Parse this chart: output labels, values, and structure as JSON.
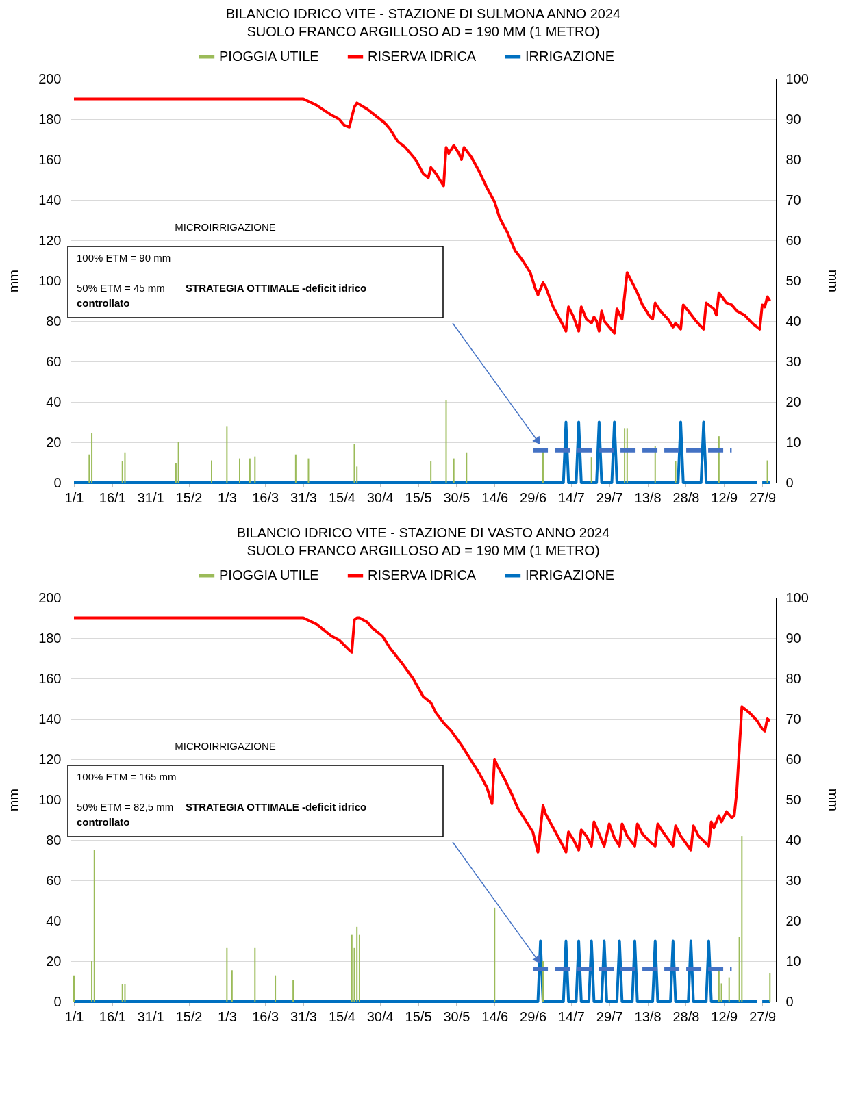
{
  "chart_data": [
    {
      "type": "line",
      "title": "BILANCIO IDRICO VITE - STAZIONE DI SULMONA          ANNO 2024",
      "subtitle": "SUOLO FRANCO ARGILLOSO     AD =  190 MM (1 METRO)",
      "ylabel": "mm",
      "y2label": "mm",
      "annotations": [
        "MICROIRRIGAZIONE",
        "100% ETM = 90 mm",
        "50% ETM = 45 mm",
        "STRATEGIA OTTIMALE  -deficit idrico",
        "controllato"
      ],
      "xlim": [
        "2024-01-01",
        "2024-10-01"
      ],
      "xticks": [
        {
          "value": "2024-01-01",
          "label": "1/1"
        },
        {
          "value": "2024-01-16",
          "label": "16/1"
        },
        {
          "value": "2024-01-31",
          "label": "31/1"
        },
        {
          "value": "2024-02-15",
          "label": "15/2"
        },
        {
          "value": "2024-03-01",
          "label": "1/3"
        },
        {
          "value": "2024-03-16",
          "label": "16/3"
        },
        {
          "value": "2024-03-31",
          "label": "31/3"
        },
        {
          "value": "2024-04-15",
          "label": "15/4"
        },
        {
          "value": "2024-04-30",
          "label": "30/4"
        },
        {
          "value": "2024-05-15",
          "label": "15/5"
        },
        {
          "value": "2024-05-30",
          "label": "30/5"
        },
        {
          "value": "2024-06-14",
          "label": "14/6"
        },
        {
          "value": "2024-06-29",
          "label": "29/6"
        },
        {
          "value": "2024-07-14",
          "label": "14/7"
        },
        {
          "value": "2024-07-29",
          "label": "29/7"
        },
        {
          "value": "2024-08-13",
          "label": "13/8"
        },
        {
          "value": "2024-08-28",
          "label": "28/8"
        },
        {
          "value": "2024-09-12",
          "label": "12/9"
        },
        {
          "value": "2024-09-27",
          "label": "27/9"
        }
      ],
      "ylim": [
        0,
        200
      ],
      "yticks": [
        0,
        20,
        40,
        60,
        80,
        100,
        120,
        140,
        160,
        180,
        200
      ],
      "y2lim": [
        0,
        100
      ],
      "y2ticks": [
        0,
        10,
        20,
        30,
        40,
        50,
        60,
        70,
        80,
        90,
        100
      ],
      "grid": "y",
      "legend": "top",
      "marker": "none",
      "series": [
        {
          "name": "PIOGGIA UTILE",
          "type": "bar",
          "color": "#9bbb59",
          "x": [
            "2024-01-07",
            "2024-01-08",
            "2024-01-20",
            "2024-01-21",
            "2024-02-10",
            "2024-02-11",
            "2024-02-24",
            "2024-03-01",
            "2024-03-06",
            "2024-03-10",
            "2024-03-12",
            "2024-03-28",
            "2024-04-02",
            "2024-04-20",
            "2024-04-21",
            "2024-05-20",
            "2024-05-26",
            "2024-05-29",
            "2024-06-03",
            "2024-07-03",
            "2024-07-22",
            "2024-08-04",
            "2024-08-05",
            "2024-08-16",
            "2024-08-24",
            "2024-09-10",
            "2024-09-29"
          ],
          "values": [
            14,
            24.5,
            10.5,
            15,
            9.5,
            20,
            11,
            28,
            12,
            12,
            13,
            14,
            12,
            19,
            8,
            10.5,
            41,
            12,
            15,
            15.5,
            12.5,
            27,
            27,
            18,
            10.5,
            23,
            11
          ]
        },
        {
          "name": "RISERVA IDRICA",
          "color": "#ff0000",
          "x": [
            "2024-01-01",
            "2024-03-31",
            "2024-04-05",
            "2024-04-11",
            "2024-04-14",
            "2024-04-16",
            "2024-04-18",
            "2024-04-20",
            "2024-04-21",
            "2024-04-25",
            "2024-04-27",
            "2024-05-02",
            "2024-05-04",
            "2024-05-07",
            "2024-05-10",
            "2024-05-14",
            "2024-05-17",
            "2024-05-19",
            "2024-05-20",
            "2024-05-22",
            "2024-05-25",
            "2024-05-26",
            "2024-05-27",
            "2024-05-29",
            "2024-05-31",
            "2024-06-01",
            "2024-06-02",
            "2024-06-05",
            "2024-06-08",
            "2024-06-11",
            "2024-06-14",
            "2024-06-16",
            "2024-06-19",
            "2024-06-22",
            "2024-06-25",
            "2024-06-28",
            "2024-06-30",
            "2024-07-01",
            "2024-07-03",
            "2024-07-04",
            "2024-07-07",
            "2024-07-10",
            "2024-07-12",
            "2024-07-13",
            "2024-07-15",
            "2024-07-17",
            "2024-07-18",
            "2024-07-20",
            "2024-07-22",
            "2024-07-23",
            "2024-07-24",
            "2024-07-25",
            "2024-07-26",
            "2024-07-27",
            "2024-07-29",
            "2024-07-31",
            "2024-08-01",
            "2024-08-03",
            "2024-08-05",
            "2024-08-07",
            "2024-08-09",
            "2024-08-11",
            "2024-08-14",
            "2024-08-15",
            "2024-08-16",
            "2024-08-18",
            "2024-08-21",
            "2024-08-23",
            "2024-08-24",
            "2024-08-26",
            "2024-08-27",
            "2024-08-29",
            "2024-09-01",
            "2024-09-04",
            "2024-09-05",
            "2024-09-08",
            "2024-09-09",
            "2024-09-10",
            "2024-09-13",
            "2024-09-15",
            "2024-09-17",
            "2024-09-20",
            "2024-09-23",
            "2024-09-26",
            "2024-09-27",
            "2024-09-28",
            "2024-09-29",
            "2024-09-30"
          ],
          "values": [
            190,
            190,
            187,
            182,
            180,
            177,
            176,
            186,
            188,
            185,
            183,
            178,
            175,
            169,
            166,
            160,
            153,
            151,
            156,
            153,
            147,
            166,
            163,
            167,
            163,
            160,
            166,
            161,
            154,
            146,
            139,
            131,
            124,
            115,
            110,
            104,
            96,
            93,
            99,
            97,
            87,
            80,
            75,
            87,
            82,
            75,
            87,
            81,
            79,
            82,
            80,
            75,
            85,
            80,
            77,
            74,
            86,
            81,
            104,
            99,
            94,
            88,
            82,
            81,
            89,
            85,
            81,
            77,
            79,
            76,
            88,
            85,
            80,
            76,
            89,
            86,
            83,
            94,
            89,
            88,
            85,
            83,
            79,
            76,
            88,
            87,
            92,
            90
          ]
        },
        {
          "name": "IRRIGAZIONE",
          "color": "#0070c0",
          "axis": "y2",
          "x": [
            "2024-01-01",
            "2024-07-11",
            "2024-07-12",
            "2024-07-13",
            "2024-07-16",
            "2024-07-17",
            "2024-07-18",
            "2024-07-24",
            "2024-07-25",
            "2024-07-26",
            "2024-07-30",
            "2024-07-31",
            "2024-08-01",
            "2024-08-25",
            "2024-08-26",
            "2024-08-27",
            "2024-09-03",
            "2024-09-04",
            "2024-09-05",
            "2024-09-25",
            "2024-09-26",
            "2024-09-27",
            "2024-09-30"
          ],
          "values": [
            0,
            0,
            15,
            0,
            0,
            15,
            0,
            0,
            15,
            0,
            0,
            15,
            0,
            0,
            15,
            0,
            0,
            15,
            0,
            0,
            null,
            0,
            0
          ]
        },
        {
          "color": "#4472c4",
          "line_style": "dashed",
          "x": [
            "2024-06-29",
            "2024-09-15"
          ],
          "values": [
            16,
            16
          ]
        }
      ]
    },
    {
      "type": "line",
      "title": "BILANCIO IDRICO VITE - STAZIONE DI VASTO          ANNO 2024",
      "subtitle": "SUOLO FRANCO ARGILLOSO     AD =  190 MM (1 METRO)",
      "ylabel": "mm",
      "y2label": "mm",
      "annotations": [
        "MICROIRRIGAZIONE",
        "100% ETM = 165 mm",
        "50% ETM = 82,5 mm",
        "STRATEGIA OTTIMALE  -deficit idrico",
        "controllato"
      ],
      "xlim": [
        "2024-01-01",
        "2024-10-01"
      ],
      "xticks": [
        {
          "value": "2024-01-01",
          "label": "1/1"
        },
        {
          "value": "2024-01-16",
          "label": "16/1"
        },
        {
          "value": "2024-01-31",
          "label": "31/1"
        },
        {
          "value": "2024-02-15",
          "label": "15/2"
        },
        {
          "value": "2024-03-01",
          "label": "1/3"
        },
        {
          "value": "2024-03-16",
          "label": "16/3"
        },
        {
          "value": "2024-03-31",
          "label": "31/3"
        },
        {
          "value": "2024-04-15",
          "label": "15/4"
        },
        {
          "value": "2024-04-30",
          "label": "30/4"
        },
        {
          "value": "2024-05-15",
          "label": "15/5"
        },
        {
          "value": "2024-05-30",
          "label": "30/5"
        },
        {
          "value": "2024-06-14",
          "label": "14/6"
        },
        {
          "value": "2024-06-29",
          "label": "29/6"
        },
        {
          "value": "2024-07-14",
          "label": "14/7"
        },
        {
          "value": "2024-07-29",
          "label": "29/7"
        },
        {
          "value": "2024-08-13",
          "label": "13/8"
        },
        {
          "value": "2024-08-28",
          "label": "28/8"
        },
        {
          "value": "2024-09-12",
          "label": "12/9"
        },
        {
          "value": "2024-09-27",
          "label": "27/9"
        }
      ],
      "ylim": [
        0,
        200
      ],
      "yticks": [
        0,
        20,
        40,
        60,
        80,
        100,
        120,
        140,
        160,
        180,
        200
      ],
      "y2lim": [
        0,
        100
      ],
      "y2ticks": [
        0,
        10,
        20,
        30,
        40,
        50,
        60,
        70,
        80,
        90,
        100
      ],
      "grid": "y",
      "legend": "top",
      "marker": "none",
      "series": [
        {
          "name": "PIOGGIA UTILE",
          "type": "bar",
          "color": "#9bbb59",
          "x": [
            "2024-01-01",
            "2024-01-08",
            "2024-01-09",
            "2024-01-20",
            "2024-01-21",
            "2024-03-01",
            "2024-03-03",
            "2024-03-12",
            "2024-03-20",
            "2024-03-27",
            "2024-04-19",
            "2024-04-20",
            "2024-04-21",
            "2024-04-22",
            "2024-06-14",
            "2024-07-03",
            "2024-09-10",
            "2024-09-11",
            "2024-09-14",
            "2024-09-18",
            "2024-09-19",
            "2024-09-30"
          ],
          "values": [
            13,
            20,
            75,
            8.5,
            8.5,
            26.5,
            15.5,
            26.5,
            13,
            10.5,
            33,
            26.5,
            37,
            33,
            46.5,
            20,
            15,
            9,
            12,
            32,
            82,
            14
          ]
        },
        {
          "name": "RISERVA IDRICA",
          "color": "#ff0000",
          "x": [
            "2024-01-01",
            "2024-03-31",
            "2024-04-05",
            "2024-04-11",
            "2024-04-14",
            "2024-04-18",
            "2024-04-19",
            "2024-04-20",
            "2024-04-21",
            "2024-04-22",
            "2024-04-25",
            "2024-04-27",
            "2024-05-01",
            "2024-05-04",
            "2024-05-09",
            "2024-05-13",
            "2024-05-17",
            "2024-05-20",
            "2024-05-22",
            "2024-05-25",
            "2024-05-28",
            "2024-06-01",
            "2024-06-05",
            "2024-06-08",
            "2024-06-11",
            "2024-06-13",
            "2024-06-14",
            "2024-06-15",
            "2024-06-18",
            "2024-06-21",
            "2024-06-23",
            "2024-06-26",
            "2024-06-29",
            "2024-07-01",
            "2024-07-03",
            "2024-07-04",
            "2024-07-07",
            "2024-07-10",
            "2024-07-12",
            "2024-07-13",
            "2024-07-15",
            "2024-07-17",
            "2024-07-18",
            "2024-07-20",
            "2024-07-22",
            "2024-07-23",
            "2024-07-25",
            "2024-07-27",
            "2024-07-29",
            "2024-07-31",
            "2024-08-02",
            "2024-08-03",
            "2024-08-05",
            "2024-08-08",
            "2024-08-09",
            "2024-08-11",
            "2024-08-14",
            "2024-08-16",
            "2024-08-17",
            "2024-08-19",
            "2024-08-23",
            "2024-08-24",
            "2024-08-26",
            "2024-08-30",
            "2024-08-31",
            "2024-09-02",
            "2024-09-06",
            "2024-09-07",
            "2024-09-08",
            "2024-09-10",
            "2024-09-11",
            "2024-09-13",
            "2024-09-15",
            "2024-09-16",
            "2024-09-17",
            "2024-09-19",
            "2024-09-22",
            "2024-09-25",
            "2024-09-27",
            "2024-09-28",
            "2024-09-29",
            "2024-09-30"
          ],
          "values": [
            190,
            190,
            187,
            181,
            179,
            174,
            173,
            189,
            190,
            190,
            188,
            185,
            181,
            175,
            167,
            160,
            151,
            148,
            143,
            138,
            134,
            127,
            119,
            113,
            106,
            98,
            120,
            117,
            110,
            102,
            96,
            90,
            84,
            74,
            97,
            93,
            86,
            79,
            74,
            84,
            80,
            75,
            85,
            82,
            77,
            89,
            83,
            77,
            88,
            81,
            77,
            88,
            82,
            77,
            88,
            83,
            79,
            77,
            88,
            84,
            77,
            87,
            82,
            75,
            87,
            82,
            77,
            89,
            86,
            92,
            89,
            94,
            91,
            92,
            104,
            146,
            143,
            139,
            135,
            134,
            140,
            139
          ]
        },
        {
          "name": "IRRIGAZIONE",
          "color": "#0070c0",
          "axis": "y2",
          "x": [
            "2024-01-01",
            "2024-07-01",
            "2024-07-02",
            "2024-07-03",
            "2024-07-11",
            "2024-07-12",
            "2024-07-13",
            "2024-07-16",
            "2024-07-17",
            "2024-07-18",
            "2024-07-21",
            "2024-07-22",
            "2024-07-23",
            "2024-07-26",
            "2024-07-27",
            "2024-07-28",
            "2024-08-01",
            "2024-08-02",
            "2024-08-03",
            "2024-08-07",
            "2024-08-08",
            "2024-08-09",
            "2024-08-15",
            "2024-08-16",
            "2024-08-17",
            "2024-08-22",
            "2024-08-23",
            "2024-08-24",
            "2024-08-29",
            "2024-08-30",
            "2024-08-31",
            "2024-09-05",
            "2024-09-06",
            "2024-09-07",
            "2024-09-25",
            "2024-09-26",
            "2024-09-27",
            "2024-09-30"
          ],
          "values": [
            0,
            0,
            15,
            0,
            0,
            15,
            0,
            0,
            15,
            0,
            0,
            15,
            0,
            0,
            15,
            0,
            0,
            15,
            0,
            0,
            15,
            0,
            0,
            15,
            0,
            0,
            15,
            0,
            0,
            15,
            0,
            0,
            15,
            0,
            0,
            null,
            0,
            0
          ]
        },
        {
          "color": "#4472c4",
          "line_style": "dashed",
          "x": [
            "2024-06-29",
            "2024-09-15"
          ],
          "values": [
            16,
            16
          ]
        }
      ]
    }
  ]
}
